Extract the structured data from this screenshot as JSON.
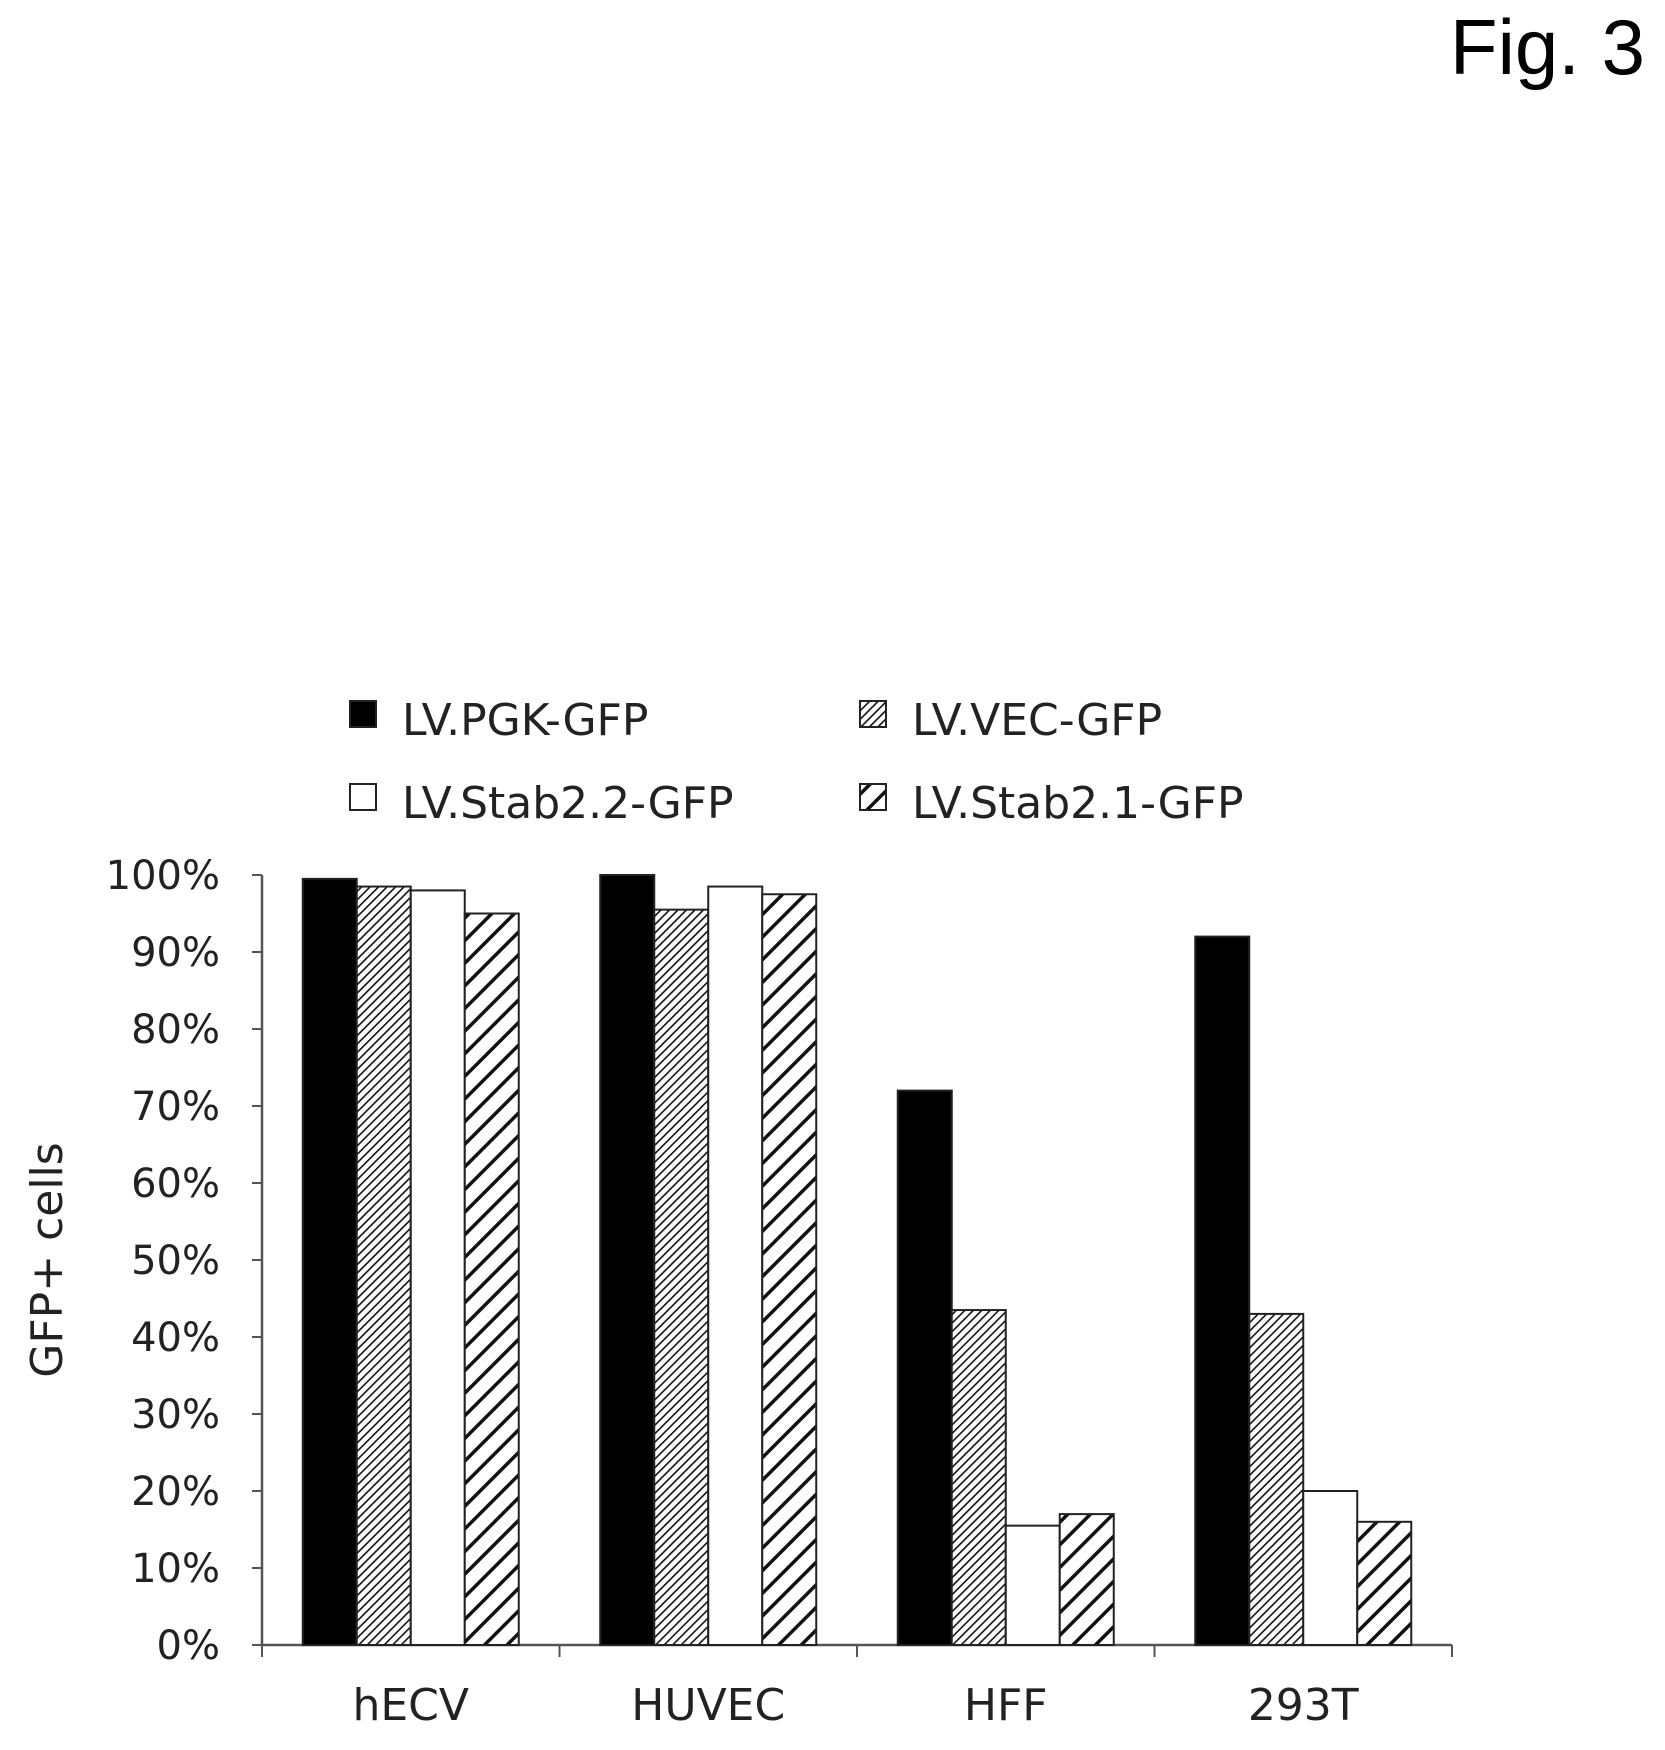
{
  "figure_label": "Fig. 3",
  "chart_data": {
    "type": "bar",
    "title": "",
    "xlabel": "",
    "ylabel": "GFP+ cells",
    "categories": [
      "hECV",
      "HUVEC",
      "HFF",
      "293T"
    ],
    "ylim": [
      0,
      100
    ],
    "yticks": [
      0,
      10,
      20,
      30,
      40,
      50,
      60,
      70,
      80,
      90,
      100
    ],
    "ytick_labels": [
      "0%",
      "10%",
      "20%",
      "30%",
      "40%",
      "50%",
      "60%",
      "70%",
      "80%",
      "90%",
      "100%"
    ],
    "grid": false,
    "legend_position": "top",
    "series": [
      {
        "name": "LV.PGK-GFP",
        "fill": "solid-black",
        "values": [
          99.5,
          100,
          72,
          92
        ]
      },
      {
        "name": "LV.VEC-GFP",
        "fill": "fine-hatch",
        "values": [
          98.5,
          95.5,
          43.5,
          43
        ]
      },
      {
        "name": "LV.Stab2.2-GFP",
        "fill": "white",
        "values": [
          98,
          98.5,
          15.5,
          20
        ]
      },
      {
        "name": "LV.Stab2.1-GFP",
        "fill": "wide-hatch",
        "values": [
          95,
          97.5,
          17,
          16
        ]
      }
    ]
  }
}
